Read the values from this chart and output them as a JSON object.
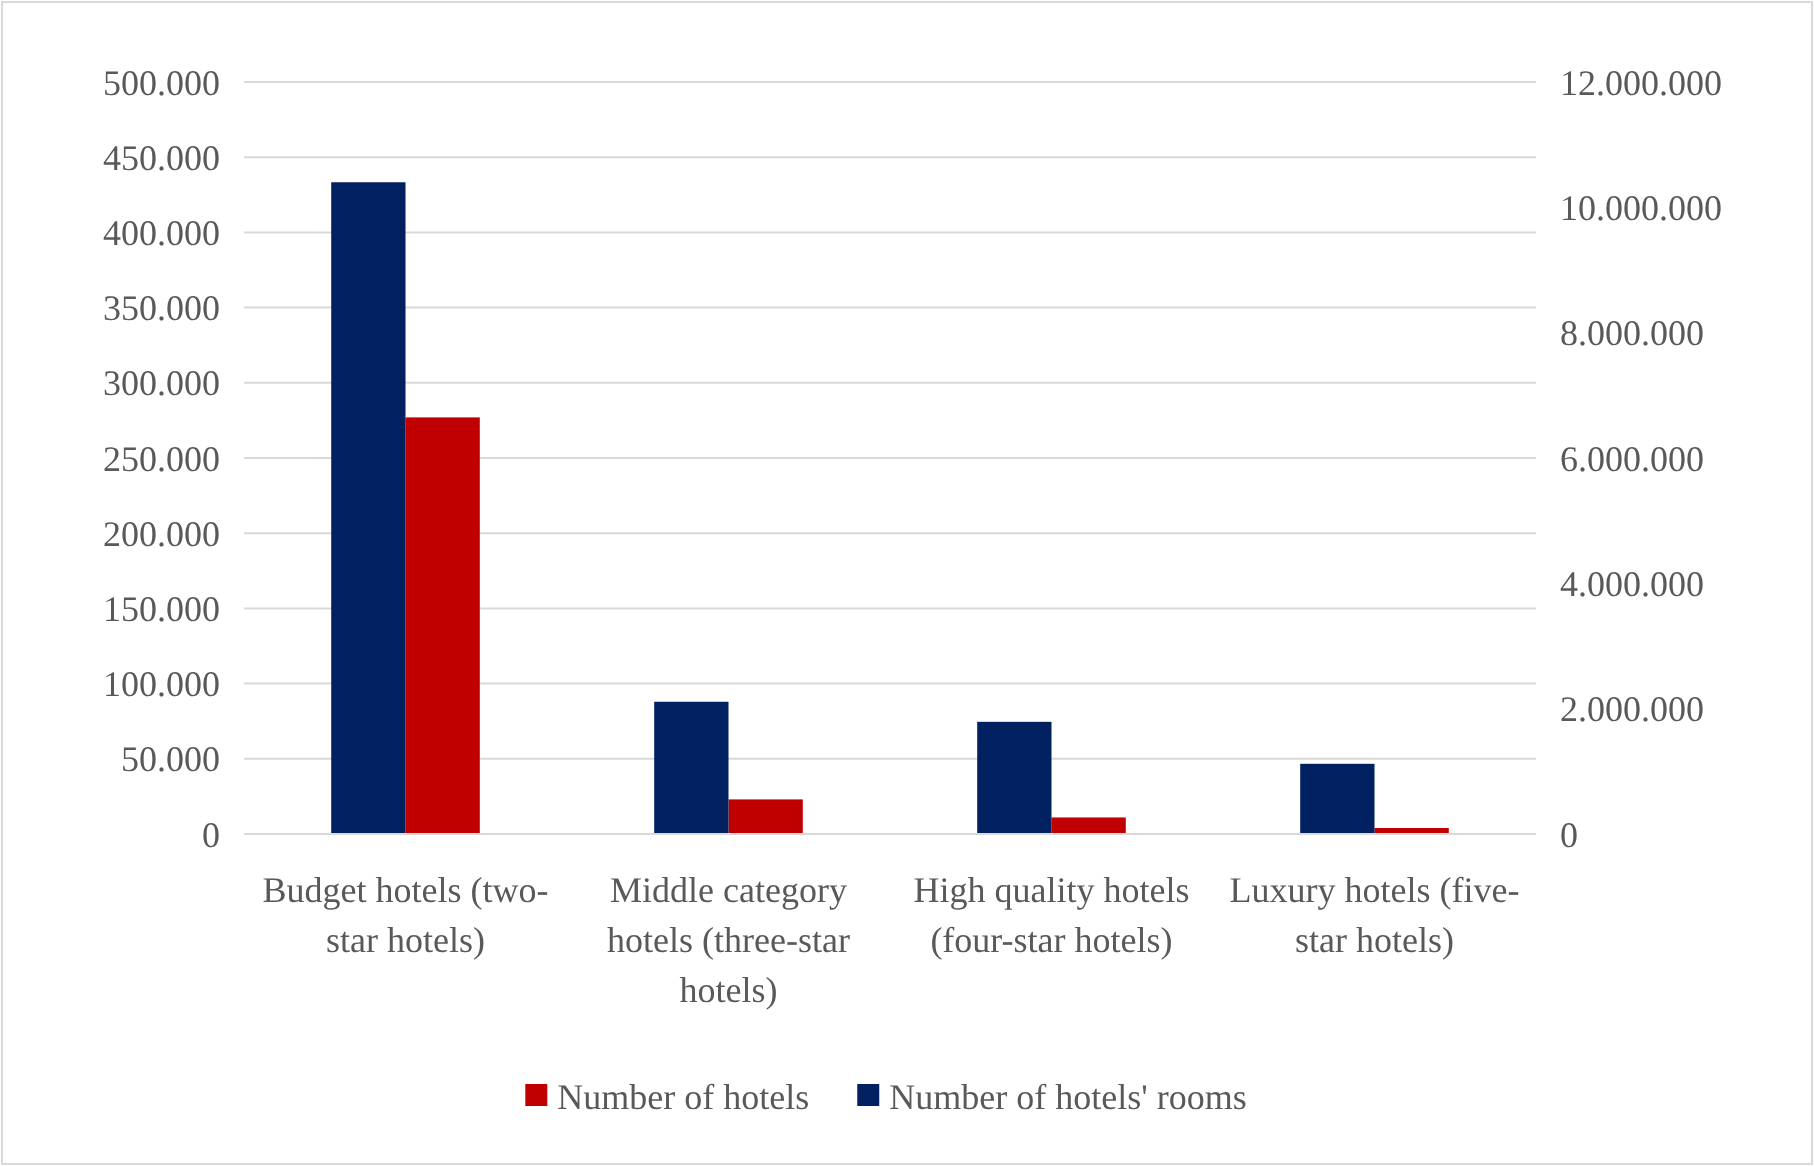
{
  "chart_data": {
    "type": "bar",
    "categories": [
      "Budget hotels (two-star hotels)",
      "Middle category hotels (three-star hotels)",
      "High quality hotels (four-star hotels)",
      "Luxury hotels (five-star hotels)"
    ],
    "series": [
      {
        "name": "Number of hotels",
        "color": "#c00000",
        "values": [
          277000,
          23000,
          11000,
          4000
        ]
      },
      {
        "name": "Number of hotels' rooms",
        "color": "#002060",
        "axis": "y2",
        "values": [
          10400000,
          2110000,
          1790000,
          1120000
        ]
      }
    ],
    "ylim": [
      0,
      500000
    ],
    "yticks": [
      {
        "value": 0,
        "label": "0"
      },
      {
        "value": 50000,
        "label": "50.000"
      },
      {
        "value": 100000,
        "label": "100.000"
      },
      {
        "value": 150000,
        "label": "150.000"
      },
      {
        "value": 200000,
        "label": "200.000"
      },
      {
        "value": 250000,
        "label": "250.000"
      },
      {
        "value": 300000,
        "label": "300.000"
      },
      {
        "value": 350000,
        "label": "350.000"
      },
      {
        "value": 400000,
        "label": "400.000"
      },
      {
        "value": 450000,
        "label": "450.000"
      },
      {
        "value": 500000,
        "label": "500.000"
      }
    ],
    "y2lim": [
      0,
      12000000
    ],
    "y2ticks": [
      {
        "value": 0,
        "label": "0"
      },
      {
        "value": 2000000,
        "label": "2.000.000"
      },
      {
        "value": 4000000,
        "label": "4.000.000"
      },
      {
        "value": 6000000,
        "label": "6.000.000"
      },
      {
        "value": 8000000,
        "label": "8.000.000"
      },
      {
        "value": 10000000,
        "label": "10.000.000"
      },
      {
        "value": 12000000,
        "label": "12.000.000"
      }
    ],
    "grid": "y",
    "legend": "bottom"
  }
}
